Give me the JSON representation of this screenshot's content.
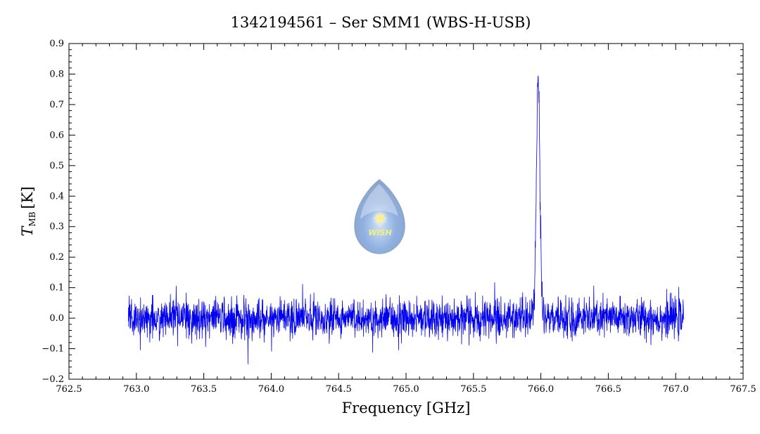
{
  "chart_data": {
    "type": "line",
    "title": "1342194561 – Ser SMM1 (WBS-H-USB)",
    "xlabel": "Frequency [GHz]",
    "ylabel_main": "T",
    "ylabel_sub": "MB",
    "ylabel_unit": "[K]",
    "xlim": [
      762.5,
      767.5
    ],
    "ylim": [
      -0.2,
      0.9
    ],
    "x_ticks": [
      762.5,
      763.0,
      763.5,
      764.0,
      764.5,
      765.0,
      765.5,
      766.0,
      766.5,
      767.0,
      767.5
    ],
    "x_tick_labels": [
      "762.5",
      "763.0",
      "763.5",
      "764.0",
      "764.5",
      "765.0",
      "765.5",
      "766.0",
      "766.5",
      "767.0",
      "767.5"
    ],
    "y_ticks": [
      -0.2,
      -0.1,
      0.0,
      0.1,
      0.2,
      0.3,
      0.4,
      0.5,
      0.6,
      0.7,
      0.8,
      0.9
    ],
    "y_tick_labels": [
      "−0.2",
      "−0.1",
      "0.0",
      "0.1",
      "0.2",
      "0.3",
      "0.4",
      "0.5",
      "0.6",
      "0.7",
      "0.8",
      "0.9"
    ],
    "grid": false,
    "series": [
      {
        "color": "#0000ee",
        "x_range": [
          762.94,
          767.06
        ],
        "baseline": 0.0,
        "noise_rms": 0.032,
        "line_center": 765.98,
        "line_peak": 0.78,
        "line_width": 0.013
      }
    ]
  },
  "logo": {
    "name": "wish-logo",
    "text": "WISH"
  }
}
